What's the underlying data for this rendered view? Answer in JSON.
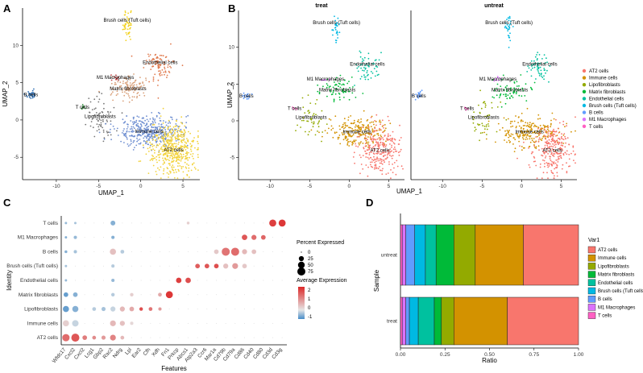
{
  "panels": {
    "A": "A",
    "B": "B",
    "C": "C",
    "D": "D"
  },
  "colors": {
    "AT2 cells": "#f8766d",
    "Immune cells": "#d39200",
    "Lipofibroblasts": "#93aa00",
    "Matrix fibroblasts": "#00ba38",
    "Endothelial cells": "#00c19f",
    "Brush cells (Tuft cells)": "#00b9e3",
    "B cells": "#619cff",
    "M1 Macrophages": "#db72fb",
    "T cells": "#ff61c3"
  },
  "chart_data": [
    {
      "id": "A",
      "type": "scatter",
      "title": "",
      "xlabel": "UMAP_1",
      "ylabel": "UMAP_2",
      "xlim": [
        -14,
        7
      ],
      "ylim": [
        -8,
        15
      ],
      "xticks": [
        -10,
        -5,
        0,
        5
      ],
      "yticks": [
        -5,
        0,
        5,
        10
      ],
      "point_colors": {
        "Brush cells (Tuft cells)": "#f2d11a",
        "Endothelial cells": "#e07a4e",
        "M1 Macrophages": "#c44a4a",
        "Matrix fibroblasts": "#d9a07a",
        "B cells": "#2e6fb5",
        "T cells": "#2e8b3a",
        "Lipofibroblasts": "#777777",
        "Immune cells": "#6f8fd1",
        "AT2 cells": "#f2d23a"
      },
      "clusters": [
        {
          "name": "Brush cells (Tuft cells)",
          "label": "Brush cells (Tuft cells)",
          "cx": -1.6,
          "cy": 12.6,
          "sx": 0.25,
          "sy": 0.9,
          "n": 45
        },
        {
          "name": "Endothelial cells",
          "label": "Endothelial cells",
          "cx": 2.3,
          "cy": 7.3,
          "sx": 0.8,
          "sy": 1.0,
          "n": 90
        },
        {
          "name": "M1 Macrophages",
          "label": "M1 Macrophages",
          "cx": -3.0,
          "cy": 5.7,
          "sx": 0.3,
          "sy": 0.2,
          "n": 12
        },
        {
          "name": "Matrix fibroblasts",
          "label": "Matrix fibroblasts",
          "cx": -1.5,
          "cy": 4.2,
          "sx": 1.2,
          "sy": 0.8,
          "n": 110
        },
        {
          "name": "B cells",
          "label": "B cells",
          "cx": -13.0,
          "cy": 3.4,
          "sx": 0.3,
          "sy": 0.3,
          "n": 30
        },
        {
          "name": "T cells",
          "label": "T cells",
          "cx": -6.9,
          "cy": 1.7,
          "sx": 0.2,
          "sy": 0.2,
          "n": 8
        },
        {
          "name": "Lipofibroblasts",
          "label": "Lipofibroblasts",
          "cx": -4.8,
          "cy": 0.5,
          "sx": 0.9,
          "sy": 1.4,
          "n": 70
        },
        {
          "name": "Immune cells",
          "label": "Immune cells",
          "cx": 1.0,
          "cy": -1.5,
          "sx": 1.8,
          "sy": 1.0,
          "n": 380
        },
        {
          "name": "AT2 cells",
          "label": "AT2 cells",
          "cx": 3.9,
          "cy": -4.0,
          "sx": 1.3,
          "sy": 1.7,
          "n": 460
        }
      ]
    },
    {
      "id": "B",
      "type": "scatter",
      "facets": [
        "treat",
        "untreat"
      ],
      "xlabel": "UMAP_1",
      "ylabel": "UMAP_2",
      "xlim": [
        -14,
        7
      ],
      "ylim": [
        -8,
        15
      ],
      "xticks": [
        -10,
        -5,
        0,
        5
      ],
      "yticks": [
        -5,
        0,
        5,
        10
      ],
      "legend": [
        "AT2 cells",
        "Immune cells",
        "Lipofibroblasts",
        "Matrix fibroblasts",
        "Endothelial cells",
        "Brush cells (Tuft cells)",
        "B cells",
        "M1 Macrophages",
        "T cells"
      ],
      "legend_position": "right",
      "clusters": [
        {
          "name": "Brush cells (Tuft cells)",
          "label": "Brush cells (Tuft cells)",
          "cx": -1.6,
          "cy": 12.6,
          "sx": 0.25,
          "sy": 0.9,
          "n": 30
        },
        {
          "name": "Endothelial cells",
          "label": "Endothelial cells",
          "cx": 2.3,
          "cy": 7.3,
          "sx": 0.8,
          "sy": 1.0,
          "n": 55
        },
        {
          "name": "M1 Macrophages",
          "label": "M1 Macrophages",
          "cx": -3.0,
          "cy": 5.7,
          "sx": 0.3,
          "sy": 0.2,
          "n": 8
        },
        {
          "name": "Matrix fibroblasts",
          "label": "Matrix fibroblasts",
          "cx": -1.5,
          "cy": 4.2,
          "sx": 1.2,
          "sy": 0.8,
          "n": 70
        },
        {
          "name": "B cells",
          "label": "B cells",
          "cx": -13.0,
          "cy": 3.4,
          "sx": 0.3,
          "sy": 0.3,
          "n": 18
        },
        {
          "name": "T cells",
          "label": "T cells",
          "cx": -6.9,
          "cy": 1.7,
          "sx": 0.2,
          "sy": 0.2,
          "n": 5
        },
        {
          "name": "Lipofibroblasts",
          "label": "Lipofibroblasts",
          "cx": -4.8,
          "cy": 0.5,
          "sx": 0.9,
          "sy": 1.4,
          "n": 45
        },
        {
          "name": "Immune cells",
          "label": "Immune cells",
          "cx": 1.0,
          "cy": -1.5,
          "sx": 1.8,
          "sy": 1.0,
          "n": 220
        },
        {
          "name": "AT2 cells",
          "label": "AT2 cells",
          "cx": 3.9,
          "cy": -4.0,
          "sx": 1.3,
          "sy": 1.7,
          "n": 260
        }
      ]
    },
    {
      "id": "C",
      "type": "scatter",
      "subtype": "dotplot",
      "xlabel": "Features",
      "ylabel": "Identity",
      "features": [
        "Wfdc17",
        "Cxcl2",
        "Cxcl2",
        "Lcg1",
        "Gbp2",
        "Rac2",
        "Ndrg",
        "Lpl",
        "Ear2",
        "Cfh",
        "Xdh",
        "Fn1",
        "Prkcp",
        "Abcs1",
        "Atp2a3",
        "Ccr6",
        "Mar1a",
        "Cd79b",
        "Cd79a",
        "Cd86",
        "Cd40",
        "Cd80",
        "Cd3d",
        "Cd3g"
      ],
      "identities": [
        "T cells",
        "M1 Macrophages",
        "B cells",
        "Brush cells (Tuft cells)",
        "Endothelial cells",
        "Matrix fibroblasts",
        "Lipofibroblasts",
        "Immune cells",
        "AT2 cells"
      ],
      "percent_legend_title": "Percent Expressed",
      "percent_legend": [
        0,
        25,
        50,
        75
      ],
      "expression_legend_title": "Average Expression",
      "expression_legend_ticks": [
        2,
        1,
        0,
        -1
      ],
      "dots": [
        {
          "identity": "T cells",
          "feature": "Wfdc17",
          "pct": 3,
          "avg": -0.5
        },
        {
          "identity": "T cells",
          "feature": "Cxcl2",
          "pct": 3,
          "avg": -0.4
        },
        {
          "identity": "T cells",
          "feature": "Rac2",
          "pct": 22,
          "avg": -0.6
        },
        {
          "identity": "T cells",
          "feature": "Abcs1",
          "pct": 5,
          "avg": 0.3
        },
        {
          "identity": "T cells",
          "feature": "Cd3d",
          "pct": 55,
          "avg": 2.2
        },
        {
          "identity": "T cells",
          "feature": "Cd3g",
          "pct": 55,
          "avg": 2.3
        },
        {
          "identity": "M1 Macrophages",
          "feature": "Wfdc17",
          "pct": 3,
          "avg": -0.6
        },
        {
          "identity": "M1 Macrophages",
          "feature": "Cxcl2",
          "pct": 8,
          "avg": -0.5
        },
        {
          "identity": "M1 Macrophages",
          "feature": "Rac2",
          "pct": 8,
          "avg": -0.6
        },
        {
          "identity": "M1 Macrophages",
          "feature": "Cd86",
          "pct": 30,
          "avg": 1.9
        },
        {
          "identity": "M1 Macrophages",
          "feature": "Cd40",
          "pct": 25,
          "avg": 1.6
        },
        {
          "identity": "M1 Macrophages",
          "feature": "Cd80",
          "pct": 20,
          "avg": 1.7
        },
        {
          "identity": "B cells",
          "feature": "Wfdc17",
          "pct": 5,
          "avg": -0.6
        },
        {
          "identity": "B cells",
          "feature": "Cxcl2",
          "pct": 8,
          "avg": -0.4
        },
        {
          "identity": "B cells",
          "feature": "Rac2",
          "pct": 40,
          "avg": 0.5
        },
        {
          "identity": "B cells",
          "feature": "Ndrg",
          "pct": 12,
          "avg": -0.3
        },
        {
          "identity": "B cells",
          "feature": "Mar1a",
          "pct": 20,
          "avg": 0.4
        },
        {
          "identity": "B cells",
          "feature": "Cd79b",
          "pct": 75,
          "avg": 1.5
        },
        {
          "identity": "B cells",
          "feature": "Cd79a",
          "pct": 75,
          "avg": 1.6
        },
        {
          "identity": "B cells",
          "feature": "Cd86",
          "pct": 25,
          "avg": 0.6
        },
        {
          "identity": "B cells",
          "feature": "Cd40",
          "pct": 20,
          "avg": 0.5
        },
        {
          "identity": "Brush cells (Tuft cells)",
          "feature": "Wfdc17",
          "pct": 3,
          "avg": -0.4
        },
        {
          "identity": "Brush cells (Tuft cells)",
          "feature": "Rac2",
          "pct": 8,
          "avg": -0.3
        },
        {
          "identity": "Brush cells (Tuft cells)",
          "feature": "Atp2a3",
          "pct": 20,
          "avg": 1.8
        },
        {
          "identity": "Brush cells (Tuft cells)",
          "feature": "Ccr6",
          "pct": 20,
          "avg": 1.9
        },
        {
          "identity": "Brush cells (Tuft cells)",
          "feature": "Mar1a",
          "pct": 20,
          "avg": 2.0
        },
        {
          "identity": "Brush cells (Tuft cells)",
          "feature": "Cd79b",
          "pct": 25,
          "avg": 0.5
        },
        {
          "identity": "Brush cells (Tuft cells)",
          "feature": "Cd79a",
          "pct": 35,
          "avg": 1.0
        },
        {
          "identity": "Brush cells (Tuft cells)",
          "feature": "Cd86",
          "pct": 20,
          "avg": 0.4
        },
        {
          "identity": "Endothelial cells",
          "feature": "Wfdc17",
          "pct": 3,
          "avg": -0.5
        },
        {
          "identity": "Endothelial cells",
          "feature": "Rac2",
          "pct": 8,
          "avg": -0.5
        },
        {
          "identity": "Endothelial cells",
          "feature": "Prkcp",
          "pct": 30,
          "avg": 2.2
        },
        {
          "identity": "Endothelial cells",
          "feature": "Abcs1",
          "pct": 30,
          "avg": 2.0
        },
        {
          "identity": "Matrix fibroblasts",
          "feature": "Wfdc17",
          "pct": 20,
          "avg": -0.8
        },
        {
          "identity": "Matrix fibroblasts",
          "feature": "Cxcl2",
          "pct": 20,
          "avg": -0.6
        },
        {
          "identity": "Matrix fibroblasts",
          "feature": "Rac2",
          "pct": 10,
          "avg": -0.3
        },
        {
          "identity": "Matrix fibroblasts",
          "feature": "Lpl",
          "pct": 10,
          "avg": 0.3
        },
        {
          "identity": "Matrix fibroblasts",
          "feature": "Xdh",
          "pct": 12,
          "avg": 0.8
        },
        {
          "identity": "Matrix fibroblasts",
          "feature": "Fn1",
          "pct": 55,
          "avg": 2.3
        },
        {
          "identity": "Lipofibroblasts",
          "feature": "Wfdc17",
          "pct": 40,
          "avg": -0.8
        },
        {
          "identity": "Lipofibroblasts",
          "feature": "Cxcl2",
          "pct": 40,
          "avg": -0.6
        },
        {
          "identity": "Lipofibroblasts",
          "feature": "Lcg1",
          "pct": 12,
          "avg": -0.3
        },
        {
          "identity": "Lipofibroblasts",
          "feature": "Gbp2",
          "pct": 15,
          "avg": -0.4
        },
        {
          "identity": "Lipofibroblasts",
          "feature": "Rac2",
          "pct": 25,
          "avg": -0.2
        },
        {
          "identity": "Lipofibroblasts",
          "feature": "Ndrg",
          "pct": 25,
          "avg": 0.6
        },
        {
          "identity": "Lipofibroblasts",
          "feature": "Lpl",
          "pct": 20,
          "avg": 0.8
        },
        {
          "identity": "Lipofibroblasts",
          "feature": "Ear2",
          "pct": 10,
          "avg": 2.0
        },
        {
          "identity": "Lipofibroblasts",
          "feature": "Cfh",
          "pct": 12,
          "avg": 1.5
        },
        {
          "identity": "Lipofibroblasts",
          "feature": "Xdh",
          "pct": 8,
          "avg": 1.0
        },
        {
          "identity": "Immune cells",
          "feature": "Wfdc17",
          "pct": 40,
          "avg": 0.3
        },
        {
          "identity": "Immune cells",
          "feature": "Cxcl2",
          "pct": 45,
          "avg": -0.2
        },
        {
          "identity": "Immune cells",
          "feature": "Rac2",
          "pct": 35,
          "avg": 0.6
        },
        {
          "identity": "Immune cells",
          "feature": "Ndrg",
          "pct": 25,
          "avg": 0.5
        },
        {
          "identity": "Immune cells",
          "feature": "Lpl",
          "pct": 8,
          "avg": 0.2
        },
        {
          "identity": "AT2 cells",
          "feature": "Wfdc17",
          "pct": 60,
          "avg": 1.6
        },
        {
          "identity": "AT2 cells",
          "feature": "Cxcl2",
          "pct": 75,
          "avg": 1.9
        },
        {
          "identity": "AT2 cells",
          "feature": "Cxcl2",
          "pct": 20,
          "avg": 1.4
        },
        {
          "identity": "AT2 cells",
          "feature": "Lcg1",
          "pct": 12,
          "avg": 1.2
        },
        {
          "identity": "AT2 cells",
          "feature": "Gbp2",
          "pct": 15,
          "avg": 1.0
        },
        {
          "identity": "AT2 cells",
          "feature": "Rac2",
          "pct": 35,
          "avg": 1.3
        },
        {
          "identity": "AT2 cells",
          "feature": "Ndrg",
          "pct": 12,
          "avg": 0.6
        }
      ]
    },
    {
      "id": "D",
      "type": "bar",
      "orientation": "horizontal",
      "stacked": true,
      "xlabel": "Ratio",
      "ylabel": "Sample",
      "xlim": [
        0,
        1
      ],
      "xticks": [
        0.0,
        0.25,
        0.5,
        0.75,
        1.0
      ],
      "xtick_labels": [
        "0.00",
        "0.25",
        "0.50",
        "0.75",
        "1.00"
      ],
      "categories": [
        "untreat",
        "treat"
      ],
      "legend_title": "Var1",
      "legend": [
        "AT2 cells",
        "Immune cells",
        "Lipofibroblasts",
        "Matrix fibroblasts",
        "Endothelial cells",
        "Brush cells (Tuft cells)",
        "B cells",
        "M1 Macrophages",
        "T cells"
      ],
      "stack_order": [
        "T cells",
        "M1 Macrophages",
        "B cells",
        "Brush cells (Tuft cells)",
        "Endothelial cells",
        "Matrix fibroblasts",
        "Lipofibroblasts",
        "Immune cells",
        "AT2 cells"
      ],
      "series": [
        {
          "name": "T cells",
          "values": [
            0.01,
            0.01
          ]
        },
        {
          "name": "M1 Macrophages",
          "values": [
            0.02,
            0.02
          ]
        },
        {
          "name": "B cells",
          "values": [
            0.05,
            0.02
          ]
        },
        {
          "name": "Brush cells (Tuft cells)",
          "values": [
            0.06,
            0.05
          ]
        },
        {
          "name": "Endothelial cells",
          "values": [
            0.06,
            0.09
          ]
        },
        {
          "name": "Matrix fibroblasts",
          "values": [
            0.1,
            0.04
          ]
        },
        {
          "name": "Lipofibroblasts",
          "values": [
            0.12,
            0.07
          ]
        },
        {
          "name": "Immune cells",
          "values": [
            0.27,
            0.3
          ]
        },
        {
          "name": "AT2 cells",
          "values": [
            0.31,
            0.4
          ]
        }
      ]
    }
  ]
}
